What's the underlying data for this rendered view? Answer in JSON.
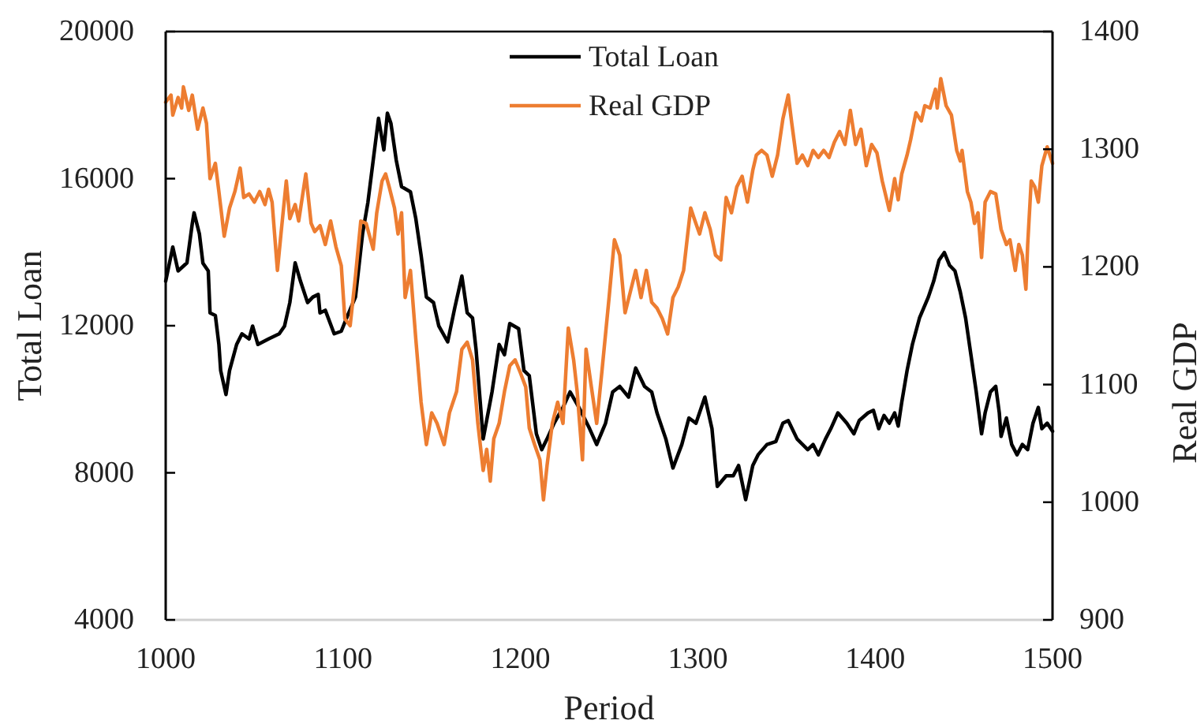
{
  "chart_data": {
    "type": "line",
    "xlabel": "Period",
    "ylabel": "Total Loan",
    "y2label": "Real GDP",
    "legend": "top",
    "xlim": [
      1000,
      1500
    ],
    "xticks": [
      1000,
      1100,
      1200,
      1300,
      1400,
      1500
    ],
    "ylim": [
      4000,
      20000
    ],
    "yticks": [
      4000,
      8000,
      12000,
      16000,
      20000
    ],
    "y2lim": [
      900,
      1400
    ],
    "y2ticks": [
      900,
      1000,
      1100,
      1200,
      1300,
      1400
    ],
    "series": [
      {
        "name": "Total Loan",
        "color": "#000000",
        "x": [
          1000,
          1004,
          1007,
          1012,
          1015,
          1016,
          1019,
          1021,
          1024,
          1025,
          1028,
          1030,
          1031,
          1034,
          1036,
          1040,
          1043,
          1047,
          1049,
          1052,
          1058,
          1064,
          1067,
          1070,
          1073,
          1076,
          1080,
          1083,
          1086,
          1087,
          1090,
          1095,
          1099,
          1102,
          1107,
          1111,
          1114,
          1117,
          1120,
          1123,
          1125,
          1127,
          1130,
          1133,
          1138,
          1141,
          1144,
          1147,
          1151,
          1154,
          1159,
          1163,
          1167,
          1170,
          1173,
          1175,
          1179,
          1184,
          1188,
          1191,
          1194,
          1199,
          1202,
          1205,
          1209,
          1212,
          1215,
          1219,
          1224,
          1228,
          1233,
          1239,
          1243,
          1248,
          1252,
          1256,
          1261,
          1265,
          1270,
          1274,
          1277,
          1282,
          1286,
          1291,
          1295,
          1299,
          1304,
          1308,
          1311,
          1316,
          1320,
          1323,
          1327,
          1331,
          1334,
          1339,
          1344,
          1348,
          1351,
          1356,
          1362,
          1365,
          1368,
          1372,
          1375,
          1379,
          1384,
          1388,
          1391,
          1396,
          1399,
          1402,
          1405,
          1408,
          1411,
          1413,
          1415,
          1418,
          1421,
          1425,
          1430,
          1433,
          1436,
          1439,
          1442,
          1445,
          1448,
          1451,
          1454,
          1457,
          1460,
          1462,
          1465,
          1468,
          1470,
          1471,
          1474,
          1477,
          1480,
          1483,
          1486,
          1489,
          1492,
          1494,
          1497,
          1500
        ],
        "values": [
          13210,
          14140,
          13490,
          13710,
          14780,
          15070,
          14500,
          13700,
          13490,
          12350,
          12280,
          11490,
          10780,
          10130,
          10780,
          11490,
          11780,
          11640,
          11990,
          11490,
          11640,
          11780,
          11990,
          12630,
          13710,
          13210,
          12630,
          12780,
          12850,
          12350,
          12420,
          11780,
          11850,
          12210,
          12780,
          14500,
          15350,
          16500,
          17640,
          16780,
          17780,
          17500,
          16500,
          15780,
          15640,
          14920,
          13920,
          12780,
          12630,
          11990,
          11560,
          12490,
          13350,
          12350,
          12210,
          11350,
          8920,
          10200,
          11490,
          11210,
          12060,
          11920,
          10780,
          10640,
          9060,
          8630,
          8920,
          9350,
          9780,
          10200,
          9780,
          9200,
          8770,
          9350,
          10200,
          10350,
          10060,
          10850,
          10350,
          10200,
          9630,
          8920,
          8130,
          8770,
          9490,
          9350,
          10060,
          9200,
          7630,
          7920,
          7920,
          8200,
          7270,
          8200,
          8490,
          8770,
          8850,
          9350,
          9420,
          8920,
          8630,
          8770,
          8490,
          8920,
          9200,
          9630,
          9350,
          9060,
          9420,
          9630,
          9700,
          9200,
          9560,
          9350,
          9630,
          9270,
          9920,
          10780,
          11490,
          12210,
          12780,
          13210,
          13780,
          13990,
          13640,
          13490,
          12920,
          12210,
          11210,
          10200,
          9060,
          9630,
          10200,
          10350,
          9630,
          8990,
          9490,
          8770,
          8490,
          8770,
          8630,
          9350,
          9780,
          9200,
          9350,
          9130
        ]
      },
      {
        "name": "Real GDP",
        "color": "#ed7d31",
        "axis": "y2",
        "x": [
          1000,
          1003,
          1004,
          1007,
          1009,
          1010,
          1013,
          1015,
          1018,
          1021,
          1023,
          1025,
          1028,
          1030,
          1033,
          1036,
          1039,
          1042,
          1044,
          1047,
          1050,
          1053,
          1056,
          1058,
          1060,
          1063,
          1065,
          1068,
          1070,
          1073,
          1075,
          1079,
          1082,
          1084,
          1087,
          1090,
          1093,
          1096,
          1099,
          1101,
          1104,
          1107,
          1110,
          1113,
          1117,
          1119,
          1122,
          1124,
          1126,
          1129,
          1131,
          1133,
          1135,
          1138,
          1141,
          1144,
          1147,
          1150,
          1153,
          1157,
          1160,
          1164,
          1167,
          1170,
          1173,
          1176,
          1179,
          1181,
          1183,
          1185,
          1188,
          1191,
          1194,
          1197,
          1200,
          1203,
          1205,
          1208,
          1211,
          1213,
          1215,
          1218,
          1221,
          1224,
          1227,
          1230,
          1232,
          1235,
          1237,
          1240,
          1243,
          1246,
          1250,
          1253,
          1256,
          1259,
          1262,
          1265,
          1268,
          1271,
          1274,
          1277,
          1280,
          1283,
          1286,
          1289,
          1292,
          1296,
          1298,
          1301,
          1304,
          1307,
          1310,
          1313,
          1316,
          1319,
          1322,
          1325,
          1328,
          1331,
          1333,
          1336,
          1339,
          1342,
          1345,
          1348,
          1351,
          1353,
          1356,
          1359,
          1362,
          1365,
          1368,
          1371,
          1374,
          1377,
          1380,
          1383,
          1386,
          1389,
          1392,
          1395,
          1398,
          1401,
          1404,
          1408,
          1411,
          1413,
          1415,
          1418,
          1420,
          1423,
          1426,
          1428,
          1431,
          1434,
          1435,
          1437,
          1440,
          1443,
          1446,
          1448,
          1449,
          1452,
          1454,
          1456,
          1458,
          1460,
          1462,
          1465,
          1468,
          1471,
          1474,
          1476,
          1479,
          1481,
          1483,
          1485,
          1486,
          1488,
          1490,
          1492,
          1494,
          1497,
          1500
        ],
        "values": [
          1340,
          1346,
          1329,
          1344,
          1335,
          1353,
          1333,
          1346,
          1317,
          1335,
          1322,
          1275,
          1288,
          1264,
          1226,
          1250,
          1264,
          1284,
          1259,
          1262,
          1255,
          1264,
          1253,
          1266,
          1255,
          1197,
          1228,
          1273,
          1241,
          1253,
          1239,
          1279,
          1237,
          1230,
          1235,
          1219,
          1239,
          1217,
          1201,
          1156,
          1150,
          1192,
          1239,
          1237,
          1215,
          1246,
          1273,
          1279,
          1268,
          1250,
          1228,
          1246,
          1174,
          1197,
          1139,
          1085,
          1049,
          1076,
          1067,
          1049,
          1076,
          1094,
          1130,
          1136,
          1121,
          1067,
          1027,
          1045,
          1018,
          1054,
          1067,
          1094,
          1116,
          1121,
          1110,
          1098,
          1063,
          1049,
          1036,
          1002,
          1031,
          1067,
          1085,
          1067,
          1148,
          1121,
          1094,
          1036,
          1130,
          1098,
          1067,
          1112,
          1174,
          1223,
          1210,
          1161,
          1179,
          1197,
          1174,
          1197,
          1170,
          1165,
          1156,
          1143,
          1174,
          1183,
          1197,
          1250,
          1241,
          1228,
          1246,
          1232,
          1210,
          1206,
          1259,
          1246,
          1268,
          1277,
          1255,
          1282,
          1295,
          1299,
          1295,
          1277,
          1295,
          1326,
          1346,
          1322,
          1288,
          1295,
          1286,
          1299,
          1293,
          1299,
          1293,
          1306,
          1315,
          1304,
          1333,
          1304,
          1317,
          1286,
          1304,
          1297,
          1273,
          1248,
          1275,
          1257,
          1279,
          1295,
          1308,
          1331,
          1324,
          1337,
          1335,
          1351,
          1335,
          1360,
          1337,
          1329,
          1299,
          1290,
          1299,
          1264,
          1255,
          1237,
          1246,
          1208,
          1255,
          1264,
          1262,
          1232,
          1219,
          1223,
          1197,
          1219,
          1210,
          1181,
          1219,
          1273,
          1268,
          1255,
          1286,
          1302,
          1288
        ]
      }
    ]
  }
}
